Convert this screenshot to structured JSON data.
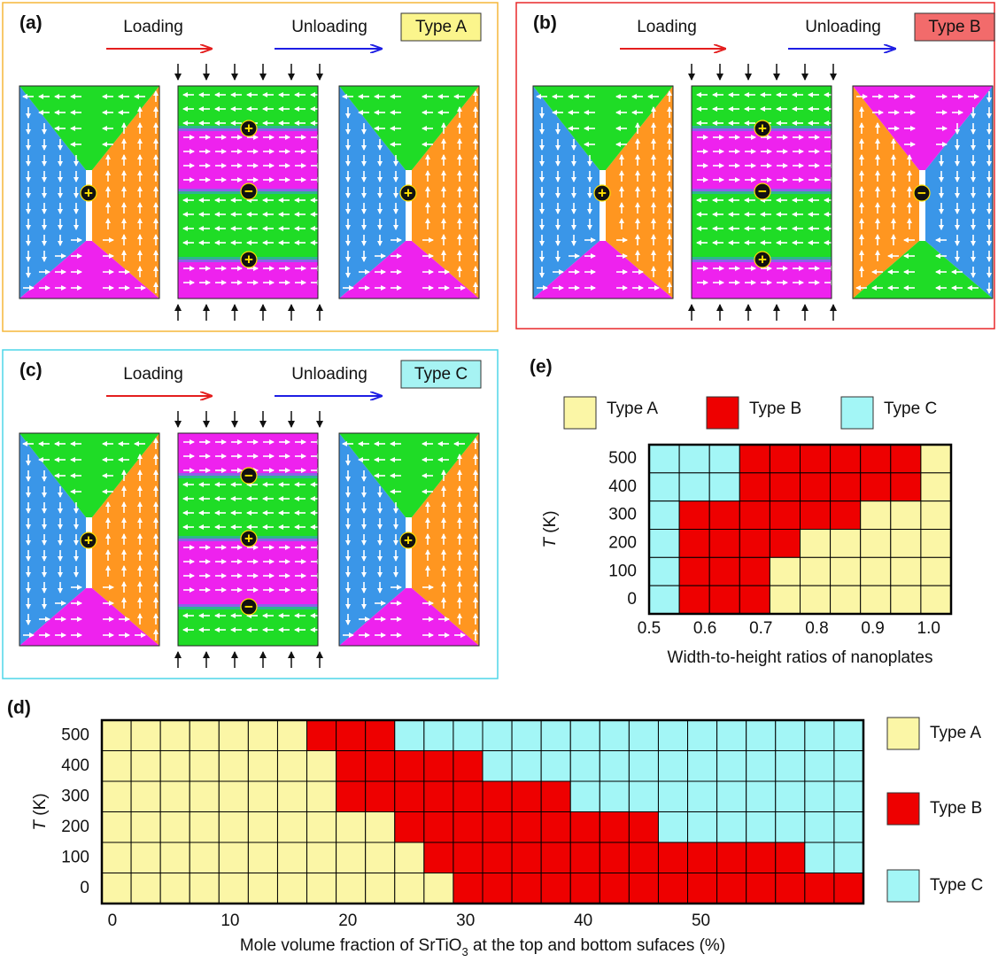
{
  "diagrams": [
    {
      "label": "(a)",
      "loading": "Loading",
      "unloading": "Unloading",
      "type": "Type A",
      "type_color": "#fbf58c",
      "border_color": "#f5b73a",
      "start_charge": "+",
      "middle_charges": [
        "+",
        "−",
        "+"
      ],
      "end_charge": "+"
    },
    {
      "label": "(b)",
      "loading": "Loading",
      "unloading": "Unloading",
      "type": "Type B",
      "type_color": "#f26b6b",
      "border_color": "#e8282a",
      "start_charge": "+",
      "middle_charges": [
        "+",
        "−",
        "+"
      ],
      "end_charge": "−"
    },
    {
      "label": "(c)",
      "loading": "Loading",
      "unloading": "Unloading",
      "type": "Type C",
      "type_color": "#a6f3f3",
      "border_color": "#4fd6e8",
      "start_charge": "+",
      "middle_charges": [
        "−",
        "+",
        "−"
      ],
      "end_charge": "+"
    }
  ],
  "chart_data": [
    {
      "type": "heatmap",
      "title": "(d)",
      "types": [
        {
          "name": "Type A",
          "color": "#fbf6a6"
        },
        {
          "name": "Type B",
          "color": "#ee0000"
        },
        {
          "name": "Type C",
          "color": "#a3f6f6"
        }
      ],
      "rows": [
        500,
        400,
        300,
        200,
        100,
        0
      ],
      "cells": [
        [
          0,
          0,
          0,
          0,
          0,
          0,
          0,
          1,
          1,
          1,
          2,
          2,
          2,
          2,
          2,
          2,
          2,
          2,
          2,
          2,
          2,
          2,
          2,
          2,
          2,
          2
        ],
        [
          0,
          0,
          0,
          0,
          0,
          0,
          0,
          0,
          1,
          1,
          1,
          1,
          1,
          2,
          2,
          2,
          2,
          2,
          2,
          2,
          2,
          2,
          2,
          2,
          2,
          2
        ],
        [
          0,
          0,
          0,
          0,
          0,
          0,
          0,
          0,
          1,
          1,
          1,
          1,
          1,
          1,
          1,
          1,
          2,
          2,
          2,
          2,
          2,
          2,
          2,
          2,
          2,
          2
        ],
        [
          0,
          0,
          0,
          0,
          0,
          0,
          0,
          0,
          0,
          0,
          1,
          1,
          1,
          1,
          1,
          1,
          1,
          1,
          1,
          2,
          2,
          2,
          2,
          2,
          2,
          2
        ],
        [
          0,
          0,
          0,
          0,
          0,
          0,
          0,
          0,
          0,
          0,
          0,
          1,
          1,
          1,
          1,
          1,
          1,
          1,
          1,
          1,
          1,
          1,
          1,
          1,
          2,
          2
        ],
        [
          0,
          0,
          0,
          0,
          0,
          0,
          0,
          0,
          0,
          0,
          0,
          0,
          1,
          1,
          1,
          1,
          1,
          1,
          1,
          1,
          1,
          1,
          1,
          1,
          1,
          1
        ]
      ],
      "xlim": [
        -0.9,
        63.8
      ],
      "xticks": [
        0,
        10,
        20,
        30,
        40,
        50
      ],
      "xlabel": [
        "Mole volume fraction of SrTiO",
        "3",
        " at the top and bottom sufaces (%)"
      ],
      "ylabel": [
        "T",
        " (K)"
      ],
      "legend": "right"
    },
    {
      "type": "heatmap",
      "title": "(e)",
      "types": [
        {
          "name": "Type A",
          "color": "#fbf6a6"
        },
        {
          "name": "Type B",
          "color": "#ee0000"
        },
        {
          "name": "Type C",
          "color": "#a3f6f6"
        }
      ],
      "rows": [
        500,
        400,
        300,
        200,
        100,
        0
      ],
      "cells": [
        [
          2,
          2,
          2,
          1,
          1,
          1,
          1,
          1,
          1,
          0
        ],
        [
          2,
          2,
          2,
          1,
          1,
          1,
          1,
          1,
          1,
          0
        ],
        [
          2,
          1,
          1,
          1,
          1,
          1,
          1,
          0,
          0,
          0
        ],
        [
          2,
          1,
          1,
          1,
          1,
          0,
          0,
          0,
          0,
          0
        ],
        [
          2,
          1,
          1,
          1,
          0,
          0,
          0,
          0,
          0,
          0
        ],
        [
          2,
          1,
          1,
          1,
          0,
          0,
          0,
          0,
          0,
          0
        ]
      ],
      "xlim": [
        0.5,
        1.04
      ],
      "xticks": [
        0.5,
        0.6,
        0.7,
        0.8,
        0.9,
        {
          "value": 1,
          "label": "1.0"
        }
      ],
      "xlabel": "Width-to-height ratios of nanoplates",
      "ylabel": [
        "T",
        " (K)"
      ],
      "legend": "top"
    }
  ]
}
